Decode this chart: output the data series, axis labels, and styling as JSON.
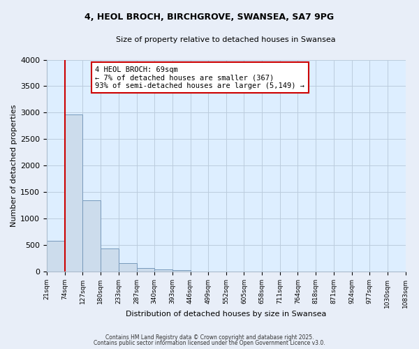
{
  "title_line1": "4, HEOL BROCH, BIRCHGROVE, SWANSEA, SA7 9PG",
  "title_line2": "Size of property relative to detached houses in Swansea",
  "xlabel": "Distribution of detached houses by size in Swansea",
  "ylabel": "Number of detached properties",
  "bar_values": [
    580,
    2960,
    1340,
    430,
    155,
    70,
    40,
    25,
    0,
    0,
    0,
    0,
    0,
    0,
    0,
    0,
    0,
    0,
    0,
    0
  ],
  "bin_edges": [
    21,
    74,
    127,
    180,
    233,
    287,
    340,
    393,
    446,
    499,
    552,
    605,
    658,
    711,
    764,
    818,
    871,
    924,
    977,
    1030,
    1083
  ],
  "bar_color": "#ccdcec",
  "bar_edgecolor": "#7799bb",
  "vline_x": 74,
  "vline_color": "#cc0000",
  "annotation_text": "4 HEOL BROCH: 69sqm\n← 7% of detached houses are smaller (367)\n93% of semi-detached houses are larger (5,149) →",
  "annotation_box_edgecolor": "#cc0000",
  "ylim": [
    0,
    4000
  ],
  "yticks": [
    0,
    500,
    1000,
    1500,
    2000,
    2500,
    3000,
    3500,
    4000
  ],
  "grid_color": "#bbccdd",
  "plot_bg_color": "#ddeeff",
  "fig_bg_color": "#e8eef8",
  "footer_line1": "Contains HM Land Registry data © Crown copyright and database right 2025.",
  "footer_line2": "Contains public sector information licensed under the Open Government Licence v3.0."
}
